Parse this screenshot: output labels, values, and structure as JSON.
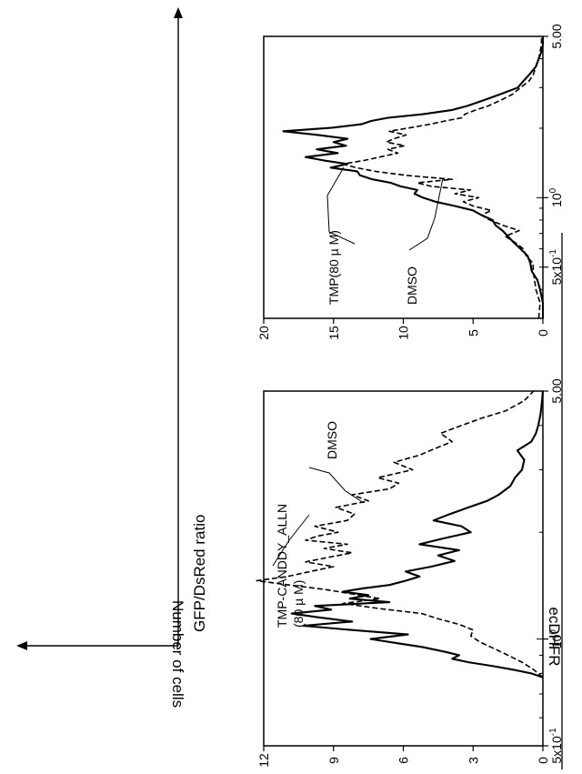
{
  "figure": {
    "row_label": "ecDHFR",
    "axes_key": {
      "y_label": "Number of cells",
      "x_label": "GFP/DsRed ratio"
    }
  },
  "chart_data": [
    {
      "type": "line",
      "xscale": "log",
      "xlim": [
        0.5,
        5.0
      ],
      "ylim": [
        0,
        12
      ],
      "x_ticks": [
        "5x10^-1",
        "10^0",
        "5.00"
      ],
      "y_ticks": [
        "0",
        "3",
        "6",
        "9",
        "12"
      ],
      "grid": false,
      "annotations": [
        {
          "text_lines": [
            "TMP-CANDDY_ALLN",
            "(80 µ M)"
          ],
          "target_series": "solid"
        },
        {
          "text_lines": [
            "DMSO"
          ],
          "target_series": "dashed"
        }
      ],
      "series": [
        {
          "style": "solid",
          "x": [
            0.78,
            0.8,
            0.82,
            0.84,
            0.86,
            0.88,
            0.9,
            0.92,
            0.95,
            0.97,
            1.0,
            1.03,
            1.06,
            1.09,
            1.12,
            1.15,
            1.18,
            1.21,
            1.24,
            1.27,
            1.3,
            1.33,
            1.36,
            1.39,
            1.42,
            1.46,
            1.5,
            1.55,
            1.6,
            1.66,
            1.72,
            1.78,
            1.85,
            1.92,
            2.0,
            2.08,
            2.16,
            2.25,
            2.35,
            2.45,
            2.55,
            2.7,
            2.85,
            3.0,
            3.2,
            3.4,
            3.6,
            3.8,
            4.0,
            4.3,
            4.6,
            5.0
          ],
          "y": [
            0,
            0.5,
            1.3,
            2.2,
            3.2,
            3.9,
            3.6,
            4.2,
            5.2,
            6.1,
            7.4,
            5.8,
            8.2,
            10.3,
            8.2,
            9.6,
            10.8,
            9.1,
            9.8,
            6.6,
            8.3,
            7.5,
            8.6,
            7.7,
            6.6,
            5.9,
            5.3,
            5.9,
            4.8,
            3.8,
            4.5,
            3.6,
            5.3,
            4.3,
            3.1,
            3.5,
            4.7,
            4.0,
            3.2,
            2.4,
            1.9,
            1.4,
            1.2,
            0.9,
            0.8,
            1.1,
            0.5,
            0.3,
            0.2,
            0.1,
            0.05,
            0
          ]
        },
        {
          "style": "dashed",
          "x": [
            0.78,
            0.82,
            0.86,
            0.9,
            0.94,
            0.98,
            1.02,
            1.06,
            1.1,
            1.14,
            1.18,
            1.22,
            1.26,
            1.3,
            1.34,
            1.38,
            1.42,
            1.46,
            1.5,
            1.55,
            1.6,
            1.65,
            1.7,
            1.75,
            1.8,
            1.85,
            1.9,
            1.95,
            2.0,
            2.08,
            2.16,
            2.25,
            2.35,
            2.45,
            2.55,
            2.65,
            2.75,
            2.85,
            3.0,
            3.15,
            3.3,
            3.45,
            3.6,
            3.8,
            4.0,
            4.2,
            4.4,
            4.7,
            5.0
          ],
          "y": [
            0,
            0.4,
            0.9,
            1.5,
            2.1,
            2.7,
            3.1,
            3.0,
            3.6,
            4.5,
            5.2,
            7.1,
            8.6,
            7.0,
            8.2,
            9.4,
            10.9,
            12.3,
            11.0,
            10.0,
            9.0,
            10.2,
            9.2,
            8.2,
            9.4,
            8.4,
            10.2,
            9.7,
            8.8,
            9.8,
            8.4,
            8.1,
            8.9,
            7.5,
            8.2,
            6.6,
            6.2,
            7.1,
            5.6,
            6.4,
            5.3,
            4.6,
            3.9,
            4.4,
            3.5,
            2.6,
            1.6,
            0.8,
            0.4
          ]
        }
      ]
    },
    {
      "type": "line",
      "xscale": "log",
      "xlim": [
        0.3,
        5.0
      ],
      "ylim": [
        0,
        20
      ],
      "x_ticks": [
        "5x10^-1",
        "10^0",
        "5.00"
      ],
      "y_ticks": [
        "0",
        "5",
        "10",
        "15",
        "20"
      ],
      "grid": false,
      "annotations": [
        {
          "text_lines": [
            "TMP(80 µ M)"
          ],
          "target_series": "solid"
        },
        {
          "text_lines": [
            "DMSO"
          ],
          "target_series": "dashed"
        }
      ],
      "series": [
        {
          "style": "solid",
          "x": [
            0.3,
            0.35,
            0.4,
            0.44,
            0.48,
            0.52,
            0.56,
            0.6,
            0.64,
            0.68,
            0.72,
            0.76,
            0.8,
            0.84,
            0.88,
            0.92,
            0.96,
            1.0,
            1.04,
            1.08,
            1.12,
            1.16,
            1.2,
            1.25,
            1.3,
            1.35,
            1.4,
            1.45,
            1.5,
            1.56,
            1.62,
            1.68,
            1.74,
            1.8,
            1.87,
            1.94,
            2.01,
            2.08,
            2.15,
            2.22,
            2.3,
            2.4,
            2.5,
            2.65,
            2.8,
            3.0,
            3.2,
            3.4,
            3.7,
            4.0,
            4.3,
            4.6,
            5.0
          ],
          "y": [
            0,
            0,
            0.2,
            0.4,
            0.8,
            0.9,
            1.1,
            1.6,
            2.1,
            2.5,
            2.9,
            3.4,
            3.6,
            4.4,
            5.0,
            6.3,
            7.7,
            8.6,
            9.2,
            9.0,
            10.2,
            10.9,
            12.2,
            13.1,
            13.3,
            15.2,
            14.0,
            15.7,
            17.0,
            14.7,
            16.2,
            14.1,
            15.0,
            14.0,
            16.1,
            18.6,
            15.1,
            13.0,
            12.3,
            11.1,
            8.6,
            6.5,
            5.4,
            4.2,
            3.1,
            1.8,
            1.4,
            1.0,
            0.5,
            0.3,
            0.1,
            0,
            0
          ]
        },
        {
          "style": "dashed",
          "x": [
            0.3,
            0.35,
            0.4,
            0.44,
            0.48,
            0.52,
            0.56,
            0.6,
            0.64,
            0.68,
            0.72,
            0.76,
            0.8,
            0.84,
            0.88,
            0.92,
            0.96,
            1.0,
            1.04,
            1.08,
            1.12,
            1.16,
            1.2,
            1.25,
            1.3,
            1.35,
            1.4,
            1.45,
            1.5,
            1.56,
            1.62,
            1.68,
            1.74,
            1.8,
            1.87,
            1.94,
            2.01,
            2.08,
            2.15,
            2.22,
            2.3,
            2.4,
            2.5,
            2.65,
            2.8,
            3.0,
            3.2,
            3.4,
            3.7,
            4.0,
            4.3,
            4.6,
            5.0
          ],
          "y": [
            0.3,
            0.2,
            0.5,
            0.6,
            0.7,
            0.7,
            1.2,
            1.4,
            2.0,
            2.7,
            1.7,
            2.9,
            3.8,
            4.4,
            3.7,
            5.0,
            5.7,
            4.6,
            6.3,
            5.2,
            8.0,
            9.0,
            6.5,
            9.8,
            12.0,
            13.4,
            14.3,
            12.8,
            11.7,
            10.4,
            11.1,
            9.9,
            11.2,
            10.7,
            9.8,
            11.0,
            9.5,
            8.1,
            7.0,
            5.8,
            5.6,
            4.8,
            3.9,
            3.0,
            2.2,
            1.6,
            1.0,
            0.7,
            0.5,
            0.3,
            0.2,
            0.1,
            0.1
          ]
        }
      ]
    }
  ]
}
